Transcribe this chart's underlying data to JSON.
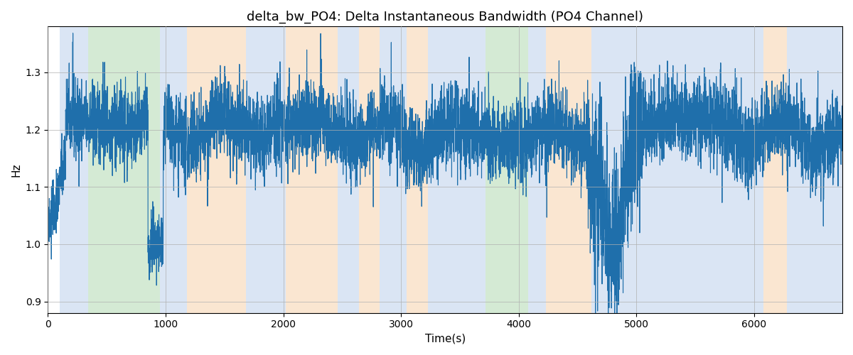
{
  "title": "delta_bw_PO4: Delta Instantaneous Bandwidth (PO4 Channel)",
  "xlabel": "Time(s)",
  "ylabel": "Hz",
  "ylim": [
    0.88,
    1.38
  ],
  "xlim": [
    0,
    6750
  ],
  "line_color": "#1f6fab",
  "line_width": 0.8,
  "grid_color": "#b0b0b0",
  "figsize": [
    12.0,
    5.0
  ],
  "dpi": 100,
  "bg_regions": [
    {
      "xmin": 100,
      "xmax": 340,
      "color": "#aec6e8",
      "alpha": 0.45
    },
    {
      "xmin": 340,
      "xmax": 950,
      "color": "#90c990",
      "alpha": 0.38
    },
    {
      "xmin": 950,
      "xmax": 1180,
      "color": "#aec6e8",
      "alpha": 0.45
    },
    {
      "xmin": 1180,
      "xmax": 1680,
      "color": "#f5c89a",
      "alpha": 0.45
    },
    {
      "xmin": 1680,
      "xmax": 2020,
      "color": "#aec6e8",
      "alpha": 0.45
    },
    {
      "xmin": 2020,
      "xmax": 2460,
      "color": "#f5c89a",
      "alpha": 0.45
    },
    {
      "xmin": 2460,
      "xmax": 2640,
      "color": "#aec6e8",
      "alpha": 0.45
    },
    {
      "xmin": 2640,
      "xmax": 2820,
      "color": "#f5c89a",
      "alpha": 0.45
    },
    {
      "xmin": 2820,
      "xmax": 3050,
      "color": "#aec6e8",
      "alpha": 0.45
    },
    {
      "xmin": 3050,
      "xmax": 3230,
      "color": "#f5c89a",
      "alpha": 0.45
    },
    {
      "xmin": 3230,
      "xmax": 3720,
      "color": "#aec6e8",
      "alpha": 0.45
    },
    {
      "xmin": 3720,
      "xmax": 4080,
      "color": "#90c990",
      "alpha": 0.38
    },
    {
      "xmin": 4080,
      "xmax": 4230,
      "color": "#aec6e8",
      "alpha": 0.45
    },
    {
      "xmin": 4230,
      "xmax": 4620,
      "color": "#f5c89a",
      "alpha": 0.45
    },
    {
      "xmin": 4620,
      "xmax": 6080,
      "color": "#aec6e8",
      "alpha": 0.45
    },
    {
      "xmin": 6080,
      "xmax": 6280,
      "color": "#f5c89a",
      "alpha": 0.45
    },
    {
      "xmin": 6280,
      "xmax": 6750,
      "color": "#aec6e8",
      "alpha": 0.45
    }
  ],
  "seed": 42,
  "n_points": 6700,
  "base_value": 1.2,
  "noise_std": 0.035,
  "trend_period": 500
}
